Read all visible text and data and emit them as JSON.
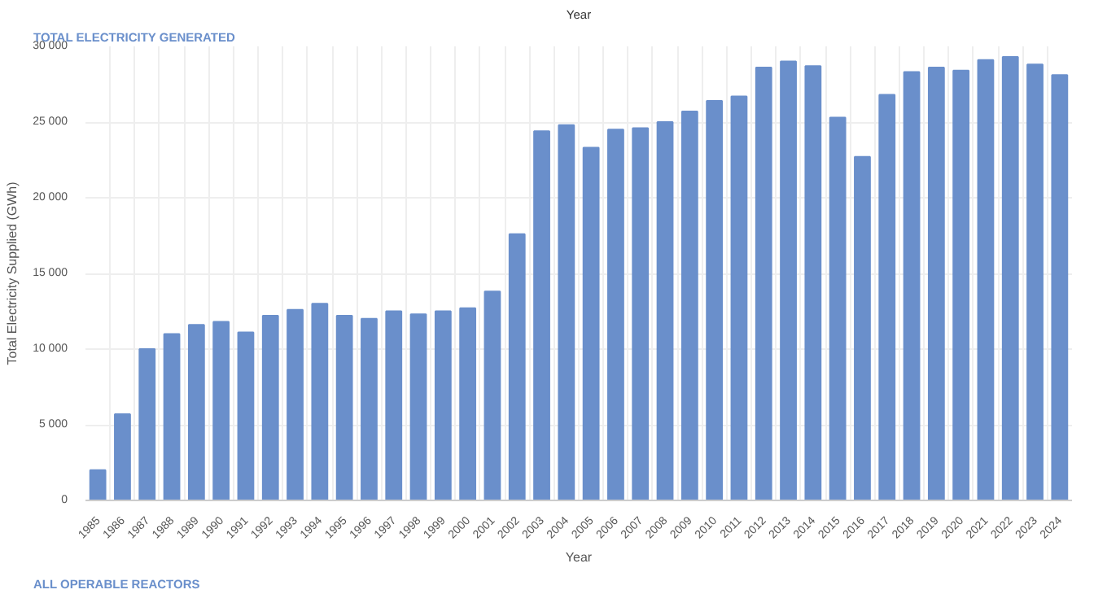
{
  "chart_data": {
    "type": "bar",
    "title": "TOTAL ELECTRICITY GENERATED",
    "xlabel": "Year",
    "ylabel": "Total Electricity Supplied (GWh)",
    "annotations": [
      "Year",
      "ALL OPERABLE REACTORS"
    ],
    "categories": [
      "1985",
      "1986",
      "1987",
      "1988",
      "1989",
      "1990",
      "1991",
      "1992",
      "1993",
      "1994",
      "1995",
      "1996",
      "1997",
      "1998",
      "1999",
      "2000",
      "2001",
      "2002",
      "2003",
      "2004",
      "2005",
      "2006",
      "2007",
      "2008",
      "2009",
      "2010",
      "2011",
      "2012",
      "2013",
      "2014",
      "2015",
      "2016",
      "2017",
      "2018",
      "2019",
      "2020",
      "2021",
      "2022",
      "2023",
      "2024"
    ],
    "values": [
      2000,
      5700,
      10000,
      11000,
      11600,
      11800,
      11100,
      12200,
      12600,
      13000,
      12200,
      12000,
      12500,
      12300,
      12500,
      12700,
      13800,
      17600,
      24400,
      24800,
      23300,
      24500,
      24600,
      25000,
      25700,
      26400,
      26700,
      28600,
      29000,
      28700,
      25300,
      22700,
      26800,
      28300,
      28600,
      28400,
      29100,
      29300,
      28800,
      28100
    ],
    "color": "#6a8fcb",
    "ylim": [
      0,
      30000
    ],
    "yticks": [
      0,
      {
        "value": 5000,
        "label": "5 000"
      },
      {
        "value": 10000,
        "label": "10 000"
      },
      {
        "value": 15000,
        "label": "15 000"
      },
      {
        "value": 20000,
        "label": "20 000"
      },
      {
        "value": 25000,
        "label": "25 000"
      },
      {
        "value": 30000,
        "label": "30 000"
      }
    ],
    "grid": true
  }
}
